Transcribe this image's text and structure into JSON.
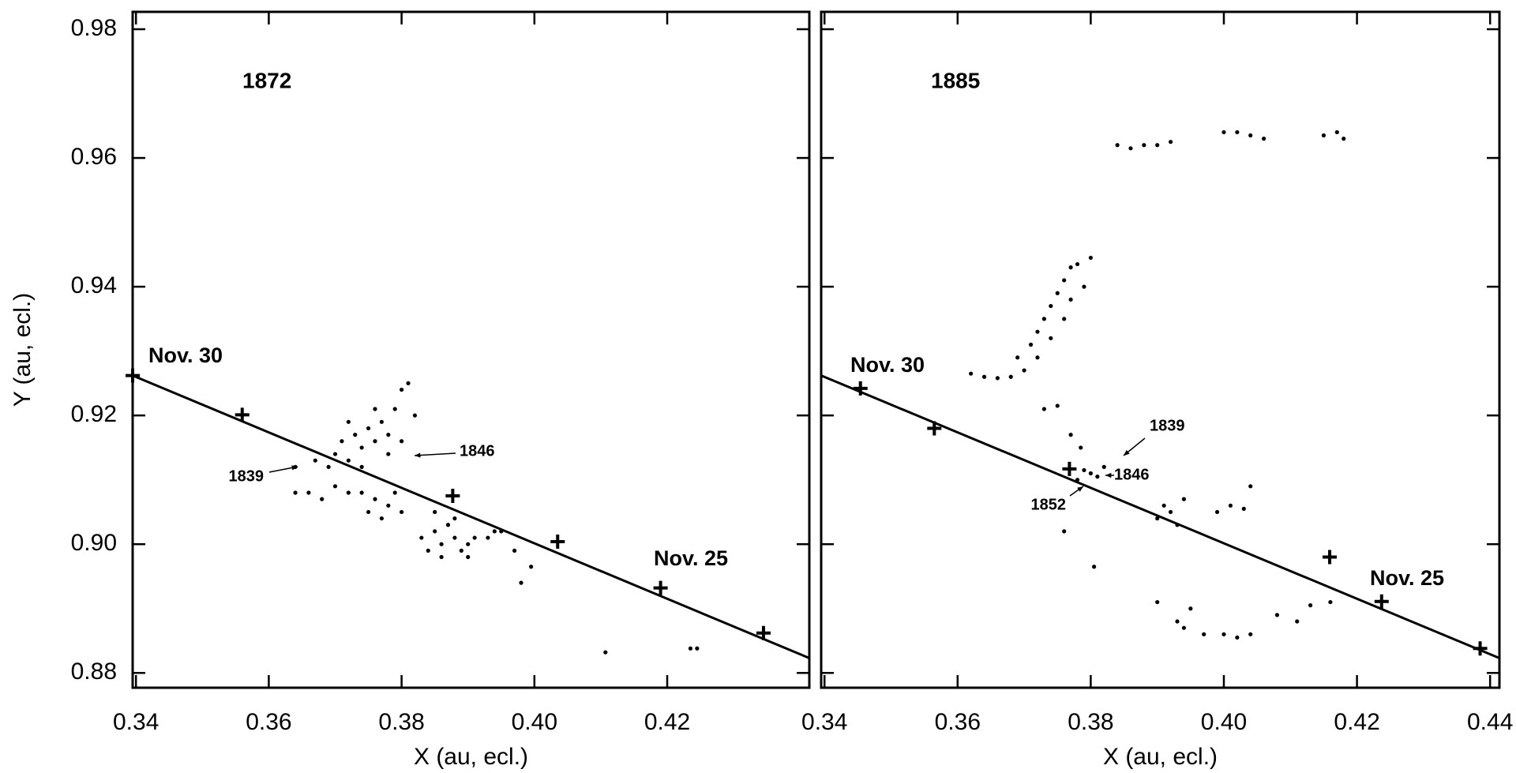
{
  "chart_data": [
    {
      "type": "scatter",
      "title": "1872",
      "x_label": "X (au, ecl.)",
      "y_label": "Y (au, ecl.)",
      "xlim": [
        0.3395,
        0.4414
      ],
      "ylim": [
        0.8777,
        0.9827
      ],
      "xticks": [
        0.34,
        0.36,
        0.38,
        {
          "value": 0.4,
          "label": "0.40"
        },
        0.42
      ],
      "yticks": [
        0.88,
        {
          "value": 0.9,
          "label": "0.90"
        },
        0.92,
        0.94,
        0.96,
        0.98
      ],
      "color": "#000000",
      "points": {
        "x": [
          0.37,
          0.371,
          0.372,
          0.373,
          0.374,
          0.375,
          0.376,
          0.377,
          0.378,
          0.379,
          0.38,
          0.381,
          0.376,
          0.374,
          0.372,
          0.369,
          0.378,
          0.382,
          0.38,
          0.367,
          0.364,
          0.366,
          0.368,
          0.37,
          0.372,
          0.374,
          0.375,
          0.377,
          0.378,
          0.379,
          0.38,
          0.376,
          0.383,
          0.384,
          0.385,
          0.386,
          0.387,
          0.388,
          0.389,
          0.39,
          0.386,
          0.388,
          0.391,
          0.385,
          0.39,
          0.393,
          0.394,
          0.395,
          0.397,
          0.398,
          0.3995,
          0.4107,
          0.4235,
          0.4245,
          0.364
        ],
        "y": [
          0.914,
          0.916,
          0.913,
          0.917,
          0.915,
          0.918,
          0.916,
          0.919,
          0.917,
          0.921,
          0.924,
          0.925,
          0.921,
          0.912,
          0.919,
          0.912,
          0.914,
          0.92,
          0.916,
          0.913,
          0.908,
          0.908,
          0.907,
          0.909,
          0.908,
          0.908,
          0.905,
          0.904,
          0.906,
          0.908,
          0.905,
          0.907,
          0.901,
          0.899,
          0.902,
          0.9,
          0.903,
          0.901,
          0.899,
          0.9,
          0.898,
          0.904,
          0.901,
          0.905,
          0.898,
          0.901,
          0.902,
          0.902,
          0.899,
          0.894,
          0.8965,
          0.8832,
          0.8838,
          0.8838,
          0.912
        ]
      },
      "line": {
        "x": [
          0.3395,
          0.4414
        ],
        "y": [
          0.9262,
          0.8823
        ]
      },
      "date_marks": {
        "x": [
          0.3395,
          0.356,
          0.3877,
          0.4035,
          0.419,
          0.4345
        ],
        "y": [
          0.9262,
          0.9201,
          0.9075,
          0.9004,
          0.8932,
          0.8862
        ]
      },
      "annotations": [
        "Nov. 30",
        "Nov. 25",
        "1839",
        "1846"
      ]
    },
    {
      "type": "scatter",
      "title": "1885",
      "x_label": "X (au, ecl.)",
      "xlim": [
        0.3395,
        0.4414
      ],
      "ylim": [
        0.8777,
        0.9827
      ],
      "xticks": [
        0.34,
        0.36,
        0.38,
        {
          "value": 0.4,
          "label": "0.40"
        },
        0.42,
        0.44
      ],
      "yticks": [
        0.88,
        0.9,
        0.92,
        0.94,
        0.96,
        0.98
      ],
      "color": "#000000",
      "points": {
        "x": [
          0.362,
          0.364,
          0.366,
          0.368,
          0.37,
          0.369,
          0.371,
          0.372,
          0.373,
          0.374,
          0.375,
          0.376,
          0.377,
          0.378,
          0.374,
          0.376,
          0.372,
          0.377,
          0.379,
          0.38,
          0.373,
          0.375,
          0.377,
          0.3785,
          0.378,
          0.38,
          0.382,
          0.381,
          0.379,
          0.376,
          0.3805,
          0.39,
          0.392,
          0.393,
          0.391,
          0.394,
          0.399,
          0.401,
          0.403,
          0.404,
          0.39,
          0.393,
          0.395,
          0.394,
          0.397,
          0.4,
          0.402,
          0.404,
          0.408,
          0.413,
          0.416,
          0.411,
          0.384,
          0.386,
          0.388,
          0.39,
          0.392,
          0.4,
          0.402,
          0.404,
          0.406,
          0.415,
          0.417,
          0.418
        ],
        "y": [
          0.9265,
          0.926,
          0.9258,
          0.926,
          0.927,
          0.929,
          0.931,
          0.933,
          0.935,
          0.937,
          0.939,
          0.941,
          0.943,
          0.9435,
          0.932,
          0.935,
          0.929,
          0.938,
          0.94,
          0.9445,
          0.921,
          0.9215,
          0.917,
          0.915,
          0.91,
          0.911,
          0.912,
          0.9105,
          0.9115,
          0.902,
          0.8965,
          0.904,
          0.905,
          0.903,
          0.906,
          0.907,
          0.905,
          0.906,
          0.9055,
          0.909,
          0.891,
          0.888,
          0.89,
          0.887,
          0.886,
          0.886,
          0.8855,
          0.886,
          0.889,
          0.8905,
          0.891,
          0.888,
          0.962,
          0.9615,
          0.962,
          0.962,
          0.9625,
          0.964,
          0.964,
          0.9635,
          0.963,
          0.9635,
          0.964,
          0.963
        ]
      },
      "line": {
        "x": [
          0.3395,
          0.4414
        ],
        "y": [
          0.9262,
          0.8823
        ]
      },
      "date_marks": {
        "x": [
          0.3454,
          0.3565,
          0.3768,
          0.4159,
          0.4237,
          0.4385
        ],
        "y": [
          0.9242,
          0.918,
          0.9117,
          0.898,
          0.8911,
          0.8838
        ]
      },
      "annotations": [
        "Nov. 30",
        "Nov. 25",
        "1839",
        "1846",
        "1852"
      ]
    }
  ]
}
